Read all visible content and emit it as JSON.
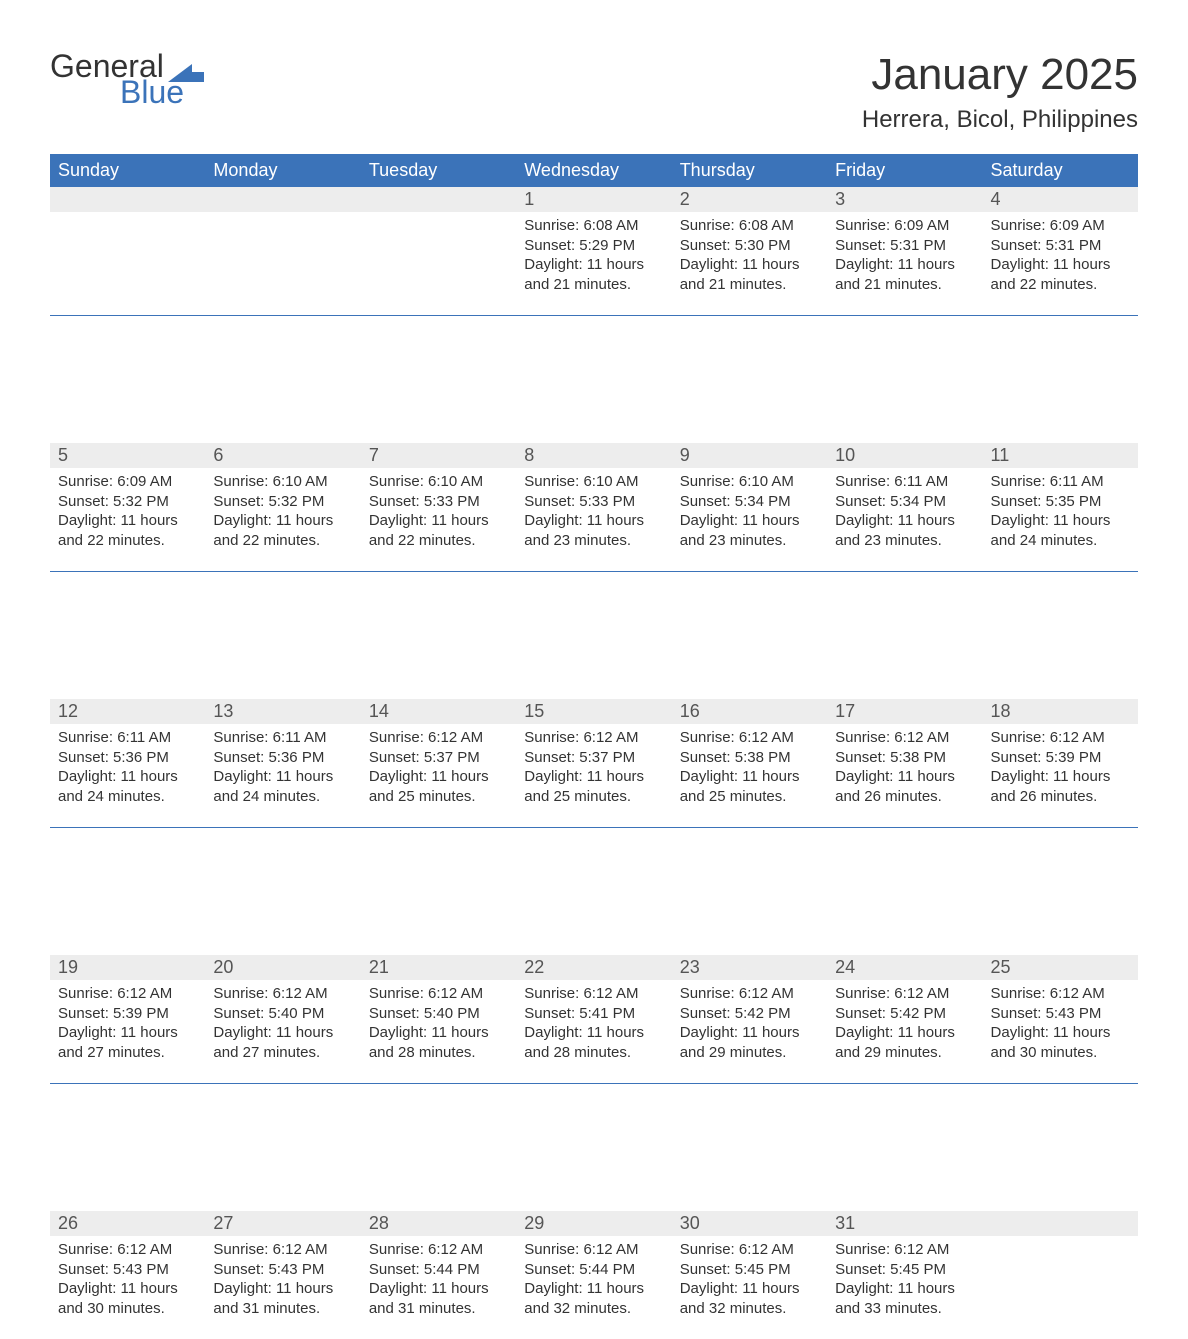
{
  "logo": {
    "text_general": "General",
    "text_blue": "Blue",
    "shape_color": "#3b73b9"
  },
  "title": "January 2025",
  "location": "Herrera, Bicol, Philippines",
  "colors": {
    "header_bg": "#3b73b9",
    "header_text": "#ffffff",
    "daynum_bg": "#ededed",
    "daynum_text": "#555555",
    "body_text": "#333333",
    "week_separator": "#3b73b9",
    "page_bg": "#ffffff"
  },
  "typography": {
    "title_fontsize": 44,
    "location_fontsize": 24,
    "weekday_fontsize": 18,
    "daynum_fontsize": 18,
    "body_fontsize": 15,
    "font_family": "Arial"
  },
  "weekdays": [
    "Sunday",
    "Monday",
    "Tuesday",
    "Wednesday",
    "Thursday",
    "Friday",
    "Saturday"
  ],
  "weeks": [
    [
      null,
      null,
      null,
      {
        "n": "1",
        "sunrise": "6:08 AM",
        "sunset": "5:29 PM",
        "daylight": "11 hours and 21 minutes."
      },
      {
        "n": "2",
        "sunrise": "6:08 AM",
        "sunset": "5:30 PM",
        "daylight": "11 hours and 21 minutes."
      },
      {
        "n": "3",
        "sunrise": "6:09 AM",
        "sunset": "5:31 PM",
        "daylight": "11 hours and 21 minutes."
      },
      {
        "n": "4",
        "sunrise": "6:09 AM",
        "sunset": "5:31 PM",
        "daylight": "11 hours and 22 minutes."
      }
    ],
    [
      {
        "n": "5",
        "sunrise": "6:09 AM",
        "sunset": "5:32 PM",
        "daylight": "11 hours and 22 minutes."
      },
      {
        "n": "6",
        "sunrise": "6:10 AM",
        "sunset": "5:32 PM",
        "daylight": "11 hours and 22 minutes."
      },
      {
        "n": "7",
        "sunrise": "6:10 AM",
        "sunset": "5:33 PM",
        "daylight": "11 hours and 22 minutes."
      },
      {
        "n": "8",
        "sunrise": "6:10 AM",
        "sunset": "5:33 PM",
        "daylight": "11 hours and 23 minutes."
      },
      {
        "n": "9",
        "sunrise": "6:10 AM",
        "sunset": "5:34 PM",
        "daylight": "11 hours and 23 minutes."
      },
      {
        "n": "10",
        "sunrise": "6:11 AM",
        "sunset": "5:34 PM",
        "daylight": "11 hours and 23 minutes."
      },
      {
        "n": "11",
        "sunrise": "6:11 AM",
        "sunset": "5:35 PM",
        "daylight": "11 hours and 24 minutes."
      }
    ],
    [
      {
        "n": "12",
        "sunrise": "6:11 AM",
        "sunset": "5:36 PM",
        "daylight": "11 hours and 24 minutes."
      },
      {
        "n": "13",
        "sunrise": "6:11 AM",
        "sunset": "5:36 PM",
        "daylight": "11 hours and 24 minutes."
      },
      {
        "n": "14",
        "sunrise": "6:12 AM",
        "sunset": "5:37 PM",
        "daylight": "11 hours and 25 minutes."
      },
      {
        "n": "15",
        "sunrise": "6:12 AM",
        "sunset": "5:37 PM",
        "daylight": "11 hours and 25 minutes."
      },
      {
        "n": "16",
        "sunrise": "6:12 AM",
        "sunset": "5:38 PM",
        "daylight": "11 hours and 25 minutes."
      },
      {
        "n": "17",
        "sunrise": "6:12 AM",
        "sunset": "5:38 PM",
        "daylight": "11 hours and 26 minutes."
      },
      {
        "n": "18",
        "sunrise": "6:12 AM",
        "sunset": "5:39 PM",
        "daylight": "11 hours and 26 minutes."
      }
    ],
    [
      {
        "n": "19",
        "sunrise": "6:12 AM",
        "sunset": "5:39 PM",
        "daylight": "11 hours and 27 minutes."
      },
      {
        "n": "20",
        "sunrise": "6:12 AM",
        "sunset": "5:40 PM",
        "daylight": "11 hours and 27 minutes."
      },
      {
        "n": "21",
        "sunrise": "6:12 AM",
        "sunset": "5:40 PM",
        "daylight": "11 hours and 28 minutes."
      },
      {
        "n": "22",
        "sunrise": "6:12 AM",
        "sunset": "5:41 PM",
        "daylight": "11 hours and 28 minutes."
      },
      {
        "n": "23",
        "sunrise": "6:12 AM",
        "sunset": "5:42 PM",
        "daylight": "11 hours and 29 minutes."
      },
      {
        "n": "24",
        "sunrise": "6:12 AM",
        "sunset": "5:42 PM",
        "daylight": "11 hours and 29 minutes."
      },
      {
        "n": "25",
        "sunrise": "6:12 AM",
        "sunset": "5:43 PM",
        "daylight": "11 hours and 30 minutes."
      }
    ],
    [
      {
        "n": "26",
        "sunrise": "6:12 AM",
        "sunset": "5:43 PM",
        "daylight": "11 hours and 30 minutes."
      },
      {
        "n": "27",
        "sunrise": "6:12 AM",
        "sunset": "5:43 PM",
        "daylight": "11 hours and 31 minutes."
      },
      {
        "n": "28",
        "sunrise": "6:12 AM",
        "sunset": "5:44 PM",
        "daylight": "11 hours and 31 minutes."
      },
      {
        "n": "29",
        "sunrise": "6:12 AM",
        "sunset": "5:44 PM",
        "daylight": "11 hours and 32 minutes."
      },
      {
        "n": "30",
        "sunrise": "6:12 AM",
        "sunset": "5:45 PM",
        "daylight": "11 hours and 32 minutes."
      },
      {
        "n": "31",
        "sunrise": "6:12 AM",
        "sunset": "5:45 PM",
        "daylight": "11 hours and 33 minutes."
      },
      null
    ]
  ],
  "labels": {
    "sunrise": "Sunrise: ",
    "sunset": "Sunset: ",
    "daylight": "Daylight: "
  }
}
